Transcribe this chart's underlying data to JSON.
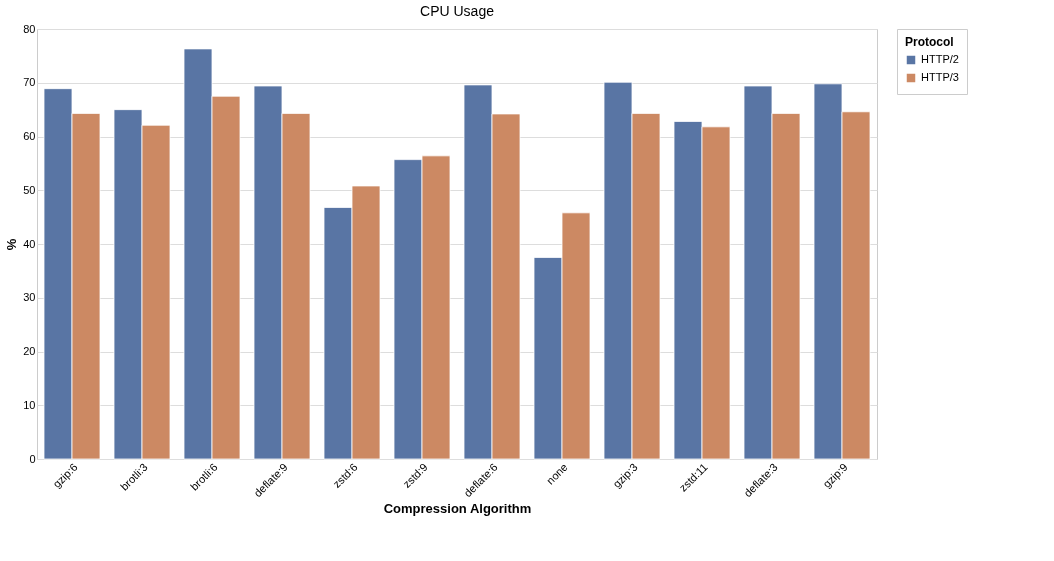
{
  "chart_data": {
    "type": "bar",
    "title": "CPU Usage",
    "xlabel": "Compression Algorithm",
    "ylabel": "%",
    "legend_title": "Protocol",
    "categories": [
      "gzip:6",
      "brotli:3",
      "brotli:6",
      "deflate:9",
      "zstd:6",
      "zstd:9",
      "deflate:6",
      "none",
      "gzip:3",
      "zstd:11",
      "deflate:3",
      "gzip:9"
    ],
    "series": [
      {
        "name": "HTTP/2",
        "color": "#5975a4",
        "values": [
          68.9,
          65.0,
          76.3,
          69.4,
          46.8,
          55.7,
          69.6,
          37.5,
          70.1,
          62.8,
          69.4,
          69.8
        ]
      },
      {
        "name": "HTTP/3",
        "color": "#cc8963",
        "values": [
          64.3,
          62.1,
          67.5,
          64.3,
          50.8,
          56.4,
          64.2,
          45.8,
          64.3,
          61.8,
          64.3,
          64.6
        ]
      }
    ],
    "ylim": [
      0,
      80
    ],
    "yticks": [
      0,
      10,
      20,
      30,
      40,
      50,
      60,
      70,
      80
    ],
    "grid": "y",
    "legend": "top right"
  }
}
